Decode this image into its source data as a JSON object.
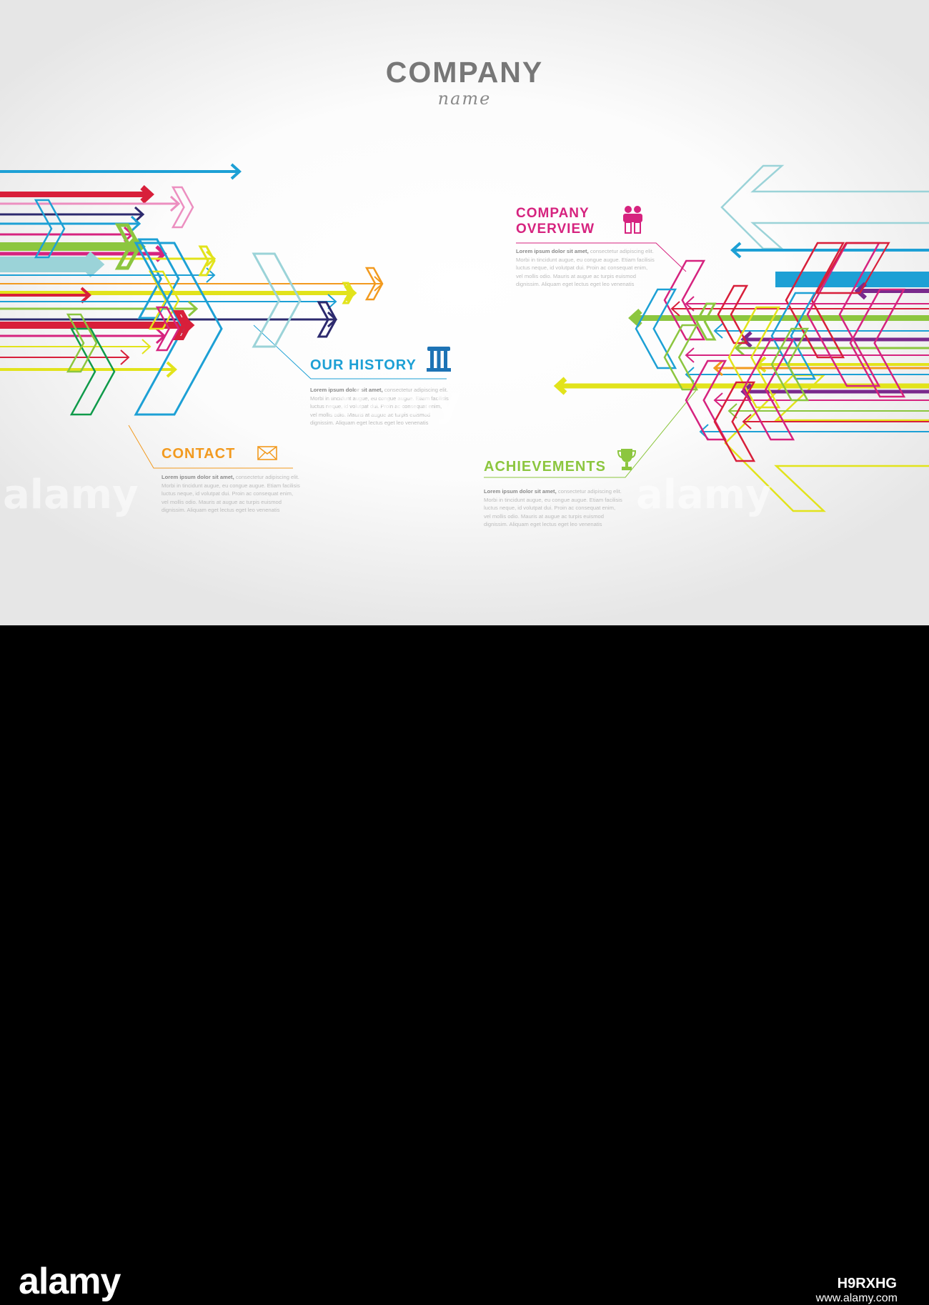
{
  "header": {
    "title": "COMPANY",
    "subtitle": "name"
  },
  "sections": {
    "overview": {
      "title_line1": "COMPANY",
      "title_line2": "OVERVIEW",
      "color": "#d6237f",
      "icon": "people-icon",
      "lead": "Lorem ipsum dolor sit amet,",
      "body1": " consectetur adipiscing elit.",
      "line2": "Morbi in tincidunt augue, eu congue augue. Etiam facilisis",
      "line3": "luctus neque, id volutpat dui. Proin ac consequat enim,",
      "line4": "vel mollis odio. Mauris at augue ac turpis euismod",
      "line5": "dignissim. Aliquam eget lectus eget leo venenatis"
    },
    "history": {
      "title": "OUR HISTORY",
      "color": "#1da0d5",
      "icon": "column-icon",
      "lead": "Lorem ipsum dolor sit amet,",
      "body1": " consectetur adipiscing elit.",
      "line2": "Morbi in tincidunt augue, eu congue augue. Etiam facilisis",
      "line3": "luctus neque, id volutpat dui. Proin ac consequat enim,",
      "line4": "vel mollis odio. Mauris at augue ac turpis euismod",
      "line5": "dignissim. Aliquam eget lectus eget leo venenatis"
    },
    "contact": {
      "title": "CONTACT",
      "color": "#f29a1f",
      "icon": "envelope-icon",
      "lead": "Lorem ipsum dolor sit amet,",
      "body1": " consectetur adipiscing elit.",
      "line2": "Morbi in tincidunt augue, eu congue augue. Etiam facilisis",
      "line3": "luctus neque, id volutpat dui. Proin ac consequat enim,",
      "line4": "vel mollis odio. Mauris at augue ac turpis euismod",
      "line5": "dignissim. Aliquam eget lectus eget leo venenatis"
    },
    "achievements": {
      "title": "ACHIEVEMENTS",
      "color": "#8cc63f",
      "icon": "trophy-icon",
      "lead": "Lorem ipsum dolor sit amet,",
      "body1": " consectetur adipiscing elit.",
      "line2": "Morbi in tincidunt augue, eu congue augue. Etiam facilisis",
      "line3": "luctus neque, id volutpat dui. Proin ac consequat enim,",
      "line4": "vel mollis odio. Mauris at augue ac turpis euismod",
      "line5": "dignissim. Aliquam eget lectus eget leo venenatis"
    }
  },
  "palette": [
    "#1da0d5",
    "#d81f3a",
    "#ec8fc0",
    "#8cc63f",
    "#d6237f",
    "#e2e31b",
    "#f29a1f",
    "#2d2a6e",
    "#9bd3d8",
    "#7a2a8c",
    "#0f9a4a"
  ],
  "watermark": {
    "text": "alamy",
    "image_id": "H9RXHG",
    "url": "www.alamy.com"
  }
}
